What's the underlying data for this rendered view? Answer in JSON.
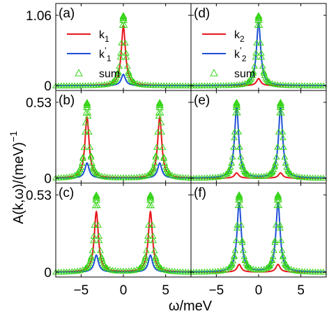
{
  "chart_data": {
    "type": "line",
    "ylabel": "A(k,ω)/(meV)",
    "ylabel_exponent": "−1",
    "xlabel": "ω/meV",
    "x_range": [
      -8,
      8
    ],
    "x_ticks": [
      {
        "value": -5,
        "label": "−5"
      },
      {
        "value": 0,
        "label": "0"
      },
      {
        "value": 5,
        "label": "5"
      }
    ],
    "colors": {
      "k": "#e8141c",
      "kprime": "#1f4fd8",
      "sum": "#35d417"
    },
    "rows": [
      {
        "ymax": 1.06,
        "yticks": [
          {
            "value": 1.06,
            "label": "1.06"
          },
          {
            "value": 0,
            "label": "0"
          }
        ]
      },
      {
        "ymax": 0.53,
        "yticks": [
          {
            "value": 0.53,
            "label": "0.53"
          },
          {
            "value": 0,
            "label": "0"
          }
        ]
      },
      {
        "ymax": 0.53,
        "yticks": [
          {
            "value": 0.53,
            "label": "0.53"
          },
          {
            "value": 0,
            "label": "0"
          }
        ]
      }
    ],
    "panels": [
      {
        "label": "(a)",
        "row": 0,
        "col": 0,
        "peaks": [
          0
        ],
        "gamma": 0.3,
        "weights": {
          "k": 0.84,
          "kprime": 0.16
        },
        "legend": [
          {
            "series": "k",
            "name": "k",
            "sub": "1",
            "prime": false
          },
          {
            "series": "kprime",
            "name": "k",
            "sub": "1",
            "prime": true
          },
          {
            "series": "sum",
            "name": "sum"
          }
        ]
      },
      {
        "label": "(d)",
        "row": 0,
        "col": 1,
        "peaks": [
          0
        ],
        "gamma": 0.3,
        "weights": {
          "k": 0.1,
          "kprime": 0.9
        },
        "legend": [
          {
            "series": "k",
            "name": "k",
            "sub": "2",
            "prime": false
          },
          {
            "series": "kprime",
            "name": "k",
            "sub": "2",
            "prime": true
          },
          {
            "series": "sum",
            "name": "sum"
          }
        ]
      },
      {
        "label": "(b)",
        "row": 1,
        "col": 0,
        "peaks": [
          -4.3,
          4.3
        ],
        "gamma": 0.3,
        "weights": {
          "k": 0.8,
          "kprime": 0.2
        }
      },
      {
        "label": "(e)",
        "row": 1,
        "col": 1,
        "peaks": [
          -2.6,
          2.6
        ],
        "gamma": 0.3,
        "weights": {
          "k": 0.07,
          "kprime": 0.93
        }
      },
      {
        "label": "(c)",
        "row": 2,
        "col": 0,
        "peaks": [
          -3.2,
          3.2
        ],
        "gamma": 0.3,
        "weights": {
          "k": 0.78,
          "kprime": 0.22
        }
      },
      {
        "label": "(f)",
        "row": 2,
        "col": 1,
        "peaks": [
          -2.3,
          2.3
        ],
        "gamma": 0.3,
        "weights": {
          "k": 0.1,
          "kprime": 0.9
        }
      }
    ]
  }
}
